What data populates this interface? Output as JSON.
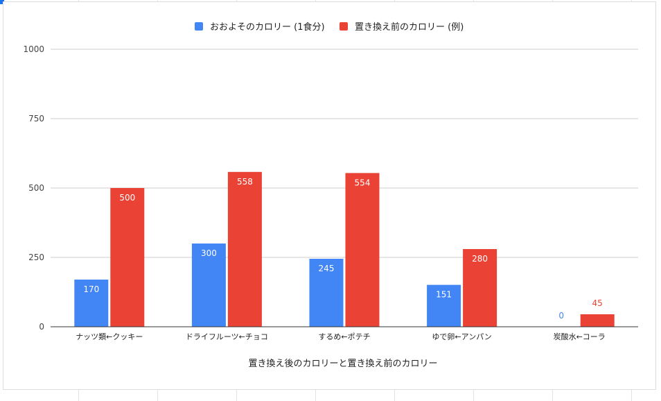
{
  "chart_data": {
    "type": "bar",
    "title": "",
    "xlabel": "置き換え後のカロリーと置き換え前のカロリー",
    "ylabel": "",
    "ylim": [
      0,
      1000
    ],
    "yticks": [
      0,
      250,
      500,
      750,
      1000
    ],
    "grid": true,
    "legend_position": "top",
    "categories": [
      "ナッツ類←クッキー",
      "ドライフルーツ←チョコ",
      "するめ←ポテチ",
      "ゆで卵←アンパン",
      "炭酸水←コーラ"
    ],
    "series": [
      {
        "name": "おおよそのカロリー (1食分)",
        "color": "#4285f4",
        "values": [
          170,
          300,
          245,
          151,
          0
        ]
      },
      {
        "name": "置き換え前のカロリー (例)",
        "color": "#ea4335",
        "values": [
          500,
          558,
          554,
          280,
          45
        ]
      }
    ]
  }
}
